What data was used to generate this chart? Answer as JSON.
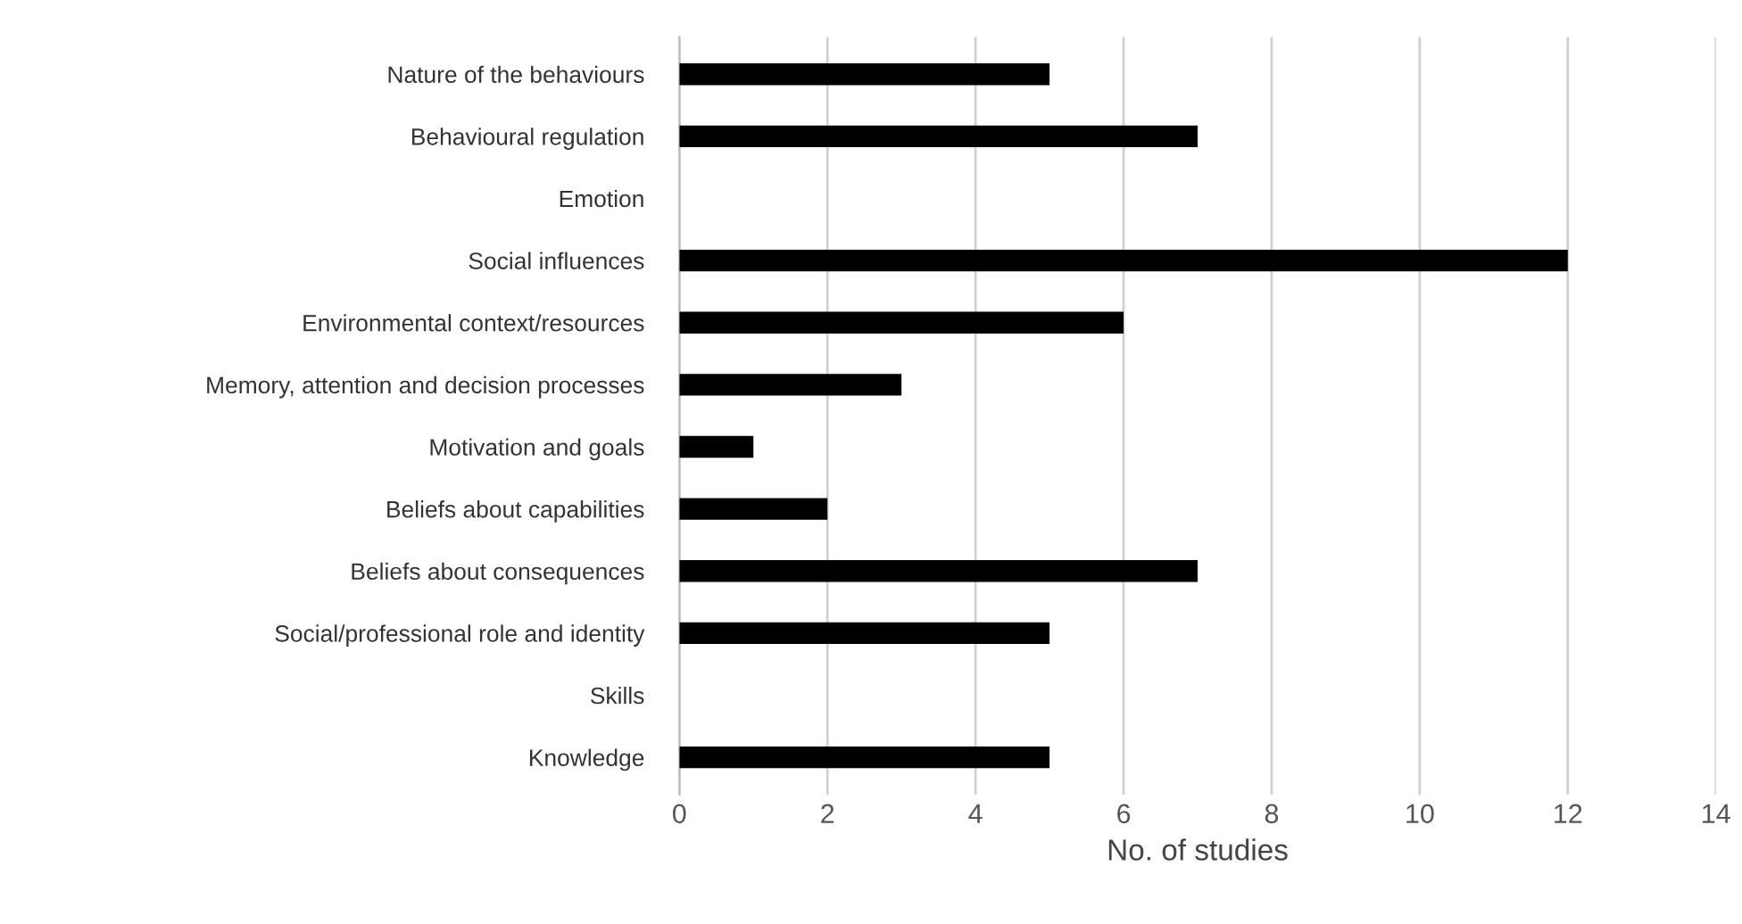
{
  "chart_data": {
    "type": "bar",
    "orientation": "horizontal",
    "xlabel": "No. of studies",
    "categories": [
      "Nature of the behaviours",
      "Behavioural regulation",
      "Emotion",
      "Social influences",
      "Environmental context/resources",
      "Memory, attention and decision processes",
      "Motivation and goals",
      "Beliefs about capabilities",
      "Beliefs about consequences",
      "Social/professional role and identity",
      "Skills",
      "Knowledge"
    ],
    "values": [
      5,
      7,
      0,
      12,
      6,
      3,
      1,
      2,
      7,
      5,
      0,
      5
    ],
    "color": "#000000",
    "xlim": [
      0,
      14
    ],
    "xticks": [
      0,
      2,
      4,
      6,
      8,
      10,
      12,
      14
    ],
    "grid": "x"
  }
}
